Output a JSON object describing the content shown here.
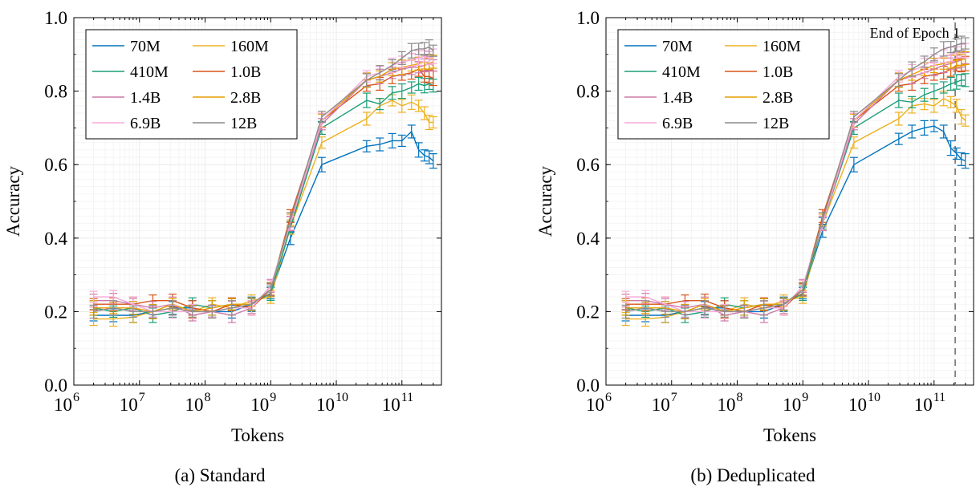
{
  "chart_data": [
    {
      "type": "line",
      "caption": "(a) Standard",
      "xlabel": "Tokens",
      "ylabel": "Accuracy",
      "x_scale": "log",
      "xlim": [
        1000000,
        400000000000
      ],
      "ylim": [
        0.0,
        1.0
      ],
      "y_ticks": [
        "0.0",
        "0.2",
        "0.4",
        "0.6",
        "0.8",
        "1.0"
      ],
      "x_ticks": [
        {
          "base": "10",
          "exp": "6"
        },
        {
          "base": "10",
          "exp": "7"
        },
        {
          "base": "10",
          "exp": "8"
        },
        {
          "base": "10",
          "exp": "9"
        },
        {
          "base": "10",
          "exp": "10"
        },
        {
          "base": "10",
          "exp": "11"
        }
      ],
      "grid": true,
      "error_bars": true,
      "legend_position": "top-left",
      "x": [
        2000000,
        4000000,
        8000000,
        16000000,
        32000000,
        64000000,
        128000000,
        256000000,
        512000000,
        1000000000,
        2000000000,
        6000000000,
        29000000000,
        46000000000,
        71000000000,
        100000000000,
        140000000000,
        180000000000,
        220000000000,
        260000000000,
        300000000000
      ],
      "series": [
        {
          "name": "70M",
          "color": "#0072BD",
          "values": [
            0.19,
            0.19,
            0.19,
            0.2,
            0.21,
            0.21,
            0.2,
            0.2,
            0.22,
            0.25,
            0.4,
            0.6,
            0.65,
            0.655,
            0.665,
            0.665,
            0.69,
            0.64,
            0.625,
            0.62,
            0.61
          ]
        },
        {
          "name": "160M",
          "color": "#EDB120",
          "values": [
            0.18,
            0.18,
            0.185,
            0.2,
            0.21,
            0.2,
            0.22,
            0.21,
            0.23,
            0.24,
            0.43,
            0.66,
            0.725,
            0.76,
            0.775,
            0.76,
            0.77,
            0.76,
            0.74,
            0.715,
            0.715
          ]
        },
        {
          "name": "410M",
          "color": "#1B9E77",
          "values": [
            0.21,
            0.2,
            0.21,
            0.19,
            0.2,
            0.22,
            0.21,
            0.22,
            0.22,
            0.25,
            0.43,
            0.7,
            0.775,
            0.765,
            0.795,
            0.8,
            0.81,
            0.82,
            0.815,
            0.82,
            0.815
          ]
        },
        {
          "name": "1.0B",
          "color": "#D95319",
          "values": [
            0.22,
            0.22,
            0.22,
            0.23,
            0.23,
            0.21,
            0.2,
            0.22,
            0.21,
            0.26,
            0.46,
            0.72,
            0.815,
            0.82,
            0.84,
            0.845,
            0.85,
            0.86,
            0.84,
            0.84,
            0.835
          ]
        },
        {
          "name": "1.4B",
          "color": "#CC79A7",
          "values": [
            0.23,
            0.23,
            0.22,
            0.21,
            0.22,
            0.19,
            0.2,
            0.19,
            0.21,
            0.27,
            0.44,
            0.71,
            0.83,
            0.84,
            0.85,
            0.86,
            0.865,
            0.865,
            0.87,
            0.875,
            0.87
          ]
        },
        {
          "name": "2.8B",
          "color": "#E69F00",
          "values": [
            0.21,
            0.21,
            0.21,
            0.2,
            0.22,
            0.2,
            0.21,
            0.22,
            0.22,
            0.26,
            0.45,
            0.72,
            0.83,
            0.84,
            0.86,
            0.865,
            0.87,
            0.875,
            0.88,
            0.875,
            0.88
          ]
        },
        {
          "name": "6.9B",
          "color": "#F7A8D8",
          "values": [
            0.24,
            0.24,
            0.22,
            0.2,
            0.2,
            0.2,
            0.2,
            0.21,
            0.21,
            0.27,
            0.44,
            0.72,
            0.84,
            0.85,
            0.87,
            0.88,
            0.885,
            0.89,
            0.895,
            0.89,
            0.895
          ]
        },
        {
          "name": "12B",
          "color": "#8C8C8C",
          "values": [
            0.2,
            0.21,
            0.2,
            0.2,
            0.21,
            0.2,
            0.2,
            0.21,
            0.22,
            0.26,
            0.45,
            0.73,
            0.83,
            0.85,
            0.87,
            0.89,
            0.91,
            0.915,
            0.915,
            0.92,
            0.91
          ]
        }
      ]
    },
    {
      "type": "line",
      "caption": "(b) Deduplicated",
      "xlabel": "Tokens",
      "ylabel": "Accuracy",
      "x_scale": "log",
      "xlim": [
        1000000,
        400000000000
      ],
      "ylim": [
        0.0,
        1.0
      ],
      "y_ticks": [
        "0.0",
        "0.2",
        "0.4",
        "0.6",
        "0.8",
        "1.0"
      ],
      "x_ticks": [
        {
          "base": "10",
          "exp": "6"
        },
        {
          "base": "10",
          "exp": "7"
        },
        {
          "base": "10",
          "exp": "8"
        },
        {
          "base": "10",
          "exp": "9"
        },
        {
          "base": "10",
          "exp": "10"
        },
        {
          "base": "10",
          "exp": "11"
        }
      ],
      "grid": true,
      "error_bars": true,
      "legend_position": "top-left",
      "annotation": {
        "text": "End of Epoch 1",
        "x": 210000000000,
        "color": "#808080"
      },
      "x": [
        2000000,
        4000000,
        8000000,
        16000000,
        32000000,
        64000000,
        128000000,
        256000000,
        512000000,
        1000000000,
        2000000000,
        6000000000,
        29000000000,
        46000000000,
        71000000000,
        100000000000,
        140000000000,
        180000000000,
        220000000000,
        260000000000,
        300000000000
      ],
      "series": [
        {
          "name": "70M",
          "color": "#0072BD",
          "values": [
            0.19,
            0.19,
            0.19,
            0.2,
            0.21,
            0.21,
            0.2,
            0.2,
            0.22,
            0.25,
            0.42,
            0.6,
            0.67,
            0.69,
            0.7,
            0.705,
            0.69,
            0.645,
            0.63,
            0.615,
            0.61
          ]
        },
        {
          "name": "160M",
          "color": "#EDB120",
          "values": [
            0.18,
            0.18,
            0.185,
            0.2,
            0.21,
            0.2,
            0.22,
            0.21,
            0.23,
            0.24,
            0.44,
            0.66,
            0.725,
            0.76,
            0.765,
            0.76,
            0.78,
            0.77,
            0.76,
            0.73,
            0.72
          ]
        },
        {
          "name": "410M",
          "color": "#1B9E77",
          "values": [
            0.21,
            0.2,
            0.21,
            0.19,
            0.2,
            0.22,
            0.21,
            0.22,
            0.22,
            0.25,
            0.44,
            0.7,
            0.775,
            0.77,
            0.79,
            0.8,
            0.81,
            0.82,
            0.825,
            0.83,
            0.83
          ]
        },
        {
          "name": "1.0B",
          "color": "#D95319",
          "values": [
            0.22,
            0.22,
            0.22,
            0.23,
            0.23,
            0.21,
            0.2,
            0.22,
            0.21,
            0.26,
            0.46,
            0.72,
            0.815,
            0.82,
            0.84,
            0.845,
            0.85,
            0.86,
            0.87,
            0.87,
            0.875
          ]
        },
        {
          "name": "1.4B",
          "color": "#CC79A7",
          "values": [
            0.23,
            0.23,
            0.22,
            0.21,
            0.22,
            0.19,
            0.2,
            0.19,
            0.21,
            0.27,
            0.44,
            0.71,
            0.83,
            0.84,
            0.85,
            0.86,
            0.87,
            0.875,
            0.88,
            0.885,
            0.89
          ]
        },
        {
          "name": "2.8B",
          "color": "#E69F00",
          "values": [
            0.21,
            0.21,
            0.21,
            0.2,
            0.22,
            0.2,
            0.21,
            0.22,
            0.22,
            0.26,
            0.45,
            0.72,
            0.83,
            0.845,
            0.86,
            0.87,
            0.875,
            0.88,
            0.885,
            0.885,
            0.89
          ]
        },
        {
          "name": "6.9B",
          "color": "#F7A8D8",
          "values": [
            0.24,
            0.24,
            0.22,
            0.2,
            0.2,
            0.2,
            0.2,
            0.21,
            0.21,
            0.27,
            0.44,
            0.72,
            0.84,
            0.855,
            0.87,
            0.885,
            0.895,
            0.9,
            0.905,
            0.91,
            0.91
          ]
        },
        {
          "name": "12B",
          "color": "#8C8C8C",
          "values": [
            0.2,
            0.21,
            0.2,
            0.2,
            0.21,
            0.2,
            0.2,
            0.21,
            0.22,
            0.26,
            0.45,
            0.73,
            0.83,
            0.86,
            0.88,
            0.9,
            0.915,
            0.92,
            0.925,
            0.93,
            0.93
          ]
        }
      ]
    }
  ]
}
